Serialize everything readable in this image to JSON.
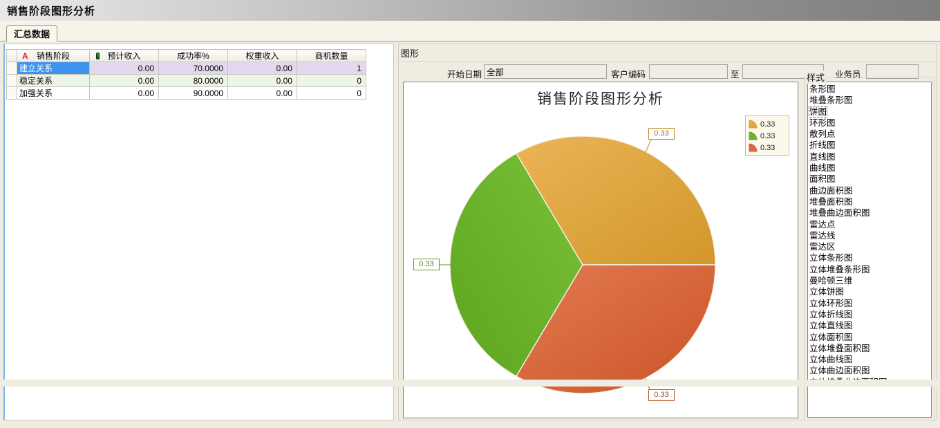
{
  "window": {
    "title": "销售阶段图形分析"
  },
  "tabs": [
    {
      "label": "汇总数据",
      "active": true
    }
  ],
  "table": {
    "columns": [
      "销售阶段",
      "预计收入",
      "成功率%",
      "权重收入",
      "商机数量"
    ],
    "rows": [
      {
        "stage": "建立关系",
        "expected": "0.00",
        "rate": "70.0000",
        "weighted": "0.00",
        "count": "1",
        "selected": true
      },
      {
        "stage": "稳定关系",
        "expected": "0.00",
        "rate": "80.0000",
        "weighted": "0.00",
        "count": "0",
        "selected": false
      },
      {
        "stage": "加强关系",
        "expected": "0.00",
        "rate": "90.0000",
        "weighted": "0.00",
        "count": "0",
        "selected": false
      }
    ],
    "selection_color": "#3D94EE",
    "selected_row_color": "#E3D9EE"
  },
  "graph_panel": {
    "title": "图形",
    "filters": {
      "start_date_label": "开始日期",
      "start_date_value": "全部",
      "customer_code_label": "客户编码",
      "customer_code_value": "",
      "to_label": "至",
      "to_value": "",
      "salesman_label": "业务员",
      "salesman_value": ""
    }
  },
  "chart_data": {
    "type": "pie",
    "title": "销售阶段图形分析",
    "categories": [
      "建立关系",
      "稳定关系",
      "加强关系"
    ],
    "values": [
      0.33,
      0.33,
      0.33
    ],
    "slice_labels": [
      "0.33",
      "0.33",
      "0.33"
    ],
    "legend": [
      "0.33",
      "0.33",
      "0.33"
    ],
    "legend_position": "top-right",
    "colors": [
      "#DFA93F",
      "#6CB22A",
      "#DA6A3E"
    ]
  },
  "style_panel": {
    "title": "样式",
    "selected": "饼图",
    "items": [
      "条形图",
      "堆叠条形图",
      "饼图",
      "环形图",
      "散列点",
      "折线图",
      "直线图",
      "曲线图",
      "面积图",
      "曲边面积图",
      "堆叠面积图",
      "堆叠曲边面积图",
      "雷达点",
      "雷达线",
      "雷达区",
      "立体条形图",
      "立体堆叠条形图",
      "曼哈顿三维",
      "立体饼图",
      "立体环形图",
      "立体折线图",
      "立体直线图",
      "立体面积图",
      "立体堆叠面积图",
      "立体曲线图",
      "立体曲边面积图",
      "立体堆叠曲边面积图"
    ]
  }
}
